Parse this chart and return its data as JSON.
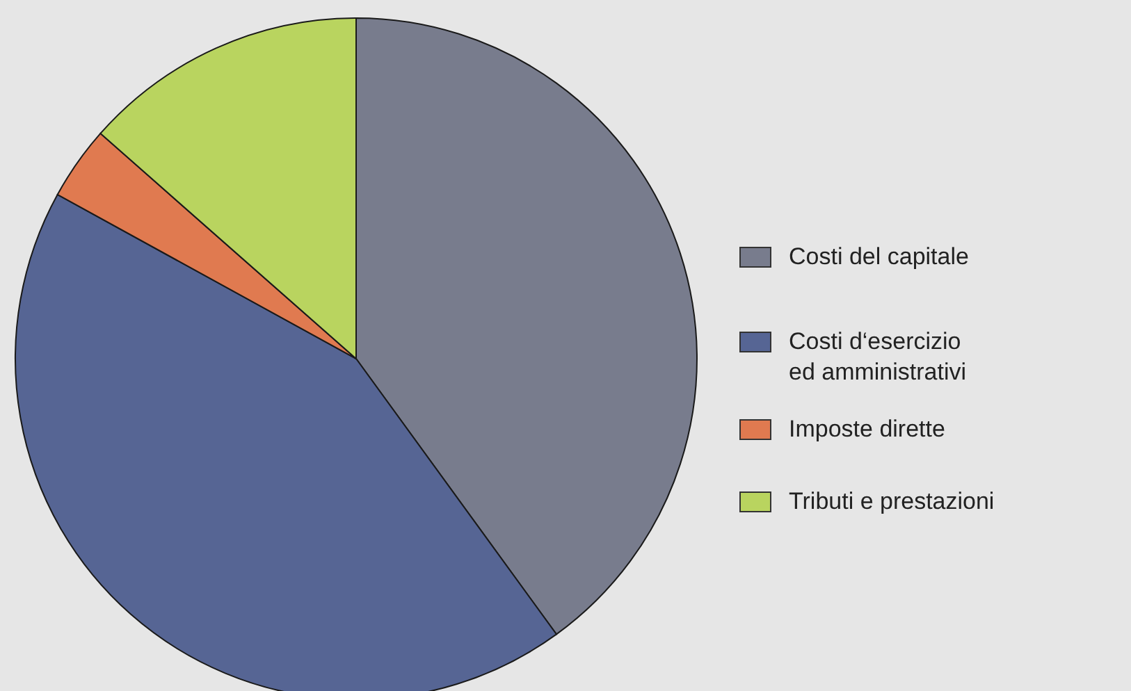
{
  "chart_data": {
    "type": "pie",
    "categories": [
      "Costi del capitale",
      "Costi d‘esercizio ed amministrativi",
      "Imposte dirette",
      "Tributi e prestazioni"
    ],
    "values": [
      40,
      43,
      3.5,
      13.5
    ],
    "colors": [
      "#787c8d",
      "#566594",
      "#e07a50",
      "#b9d45f"
    ],
    "legend": "right"
  }
}
